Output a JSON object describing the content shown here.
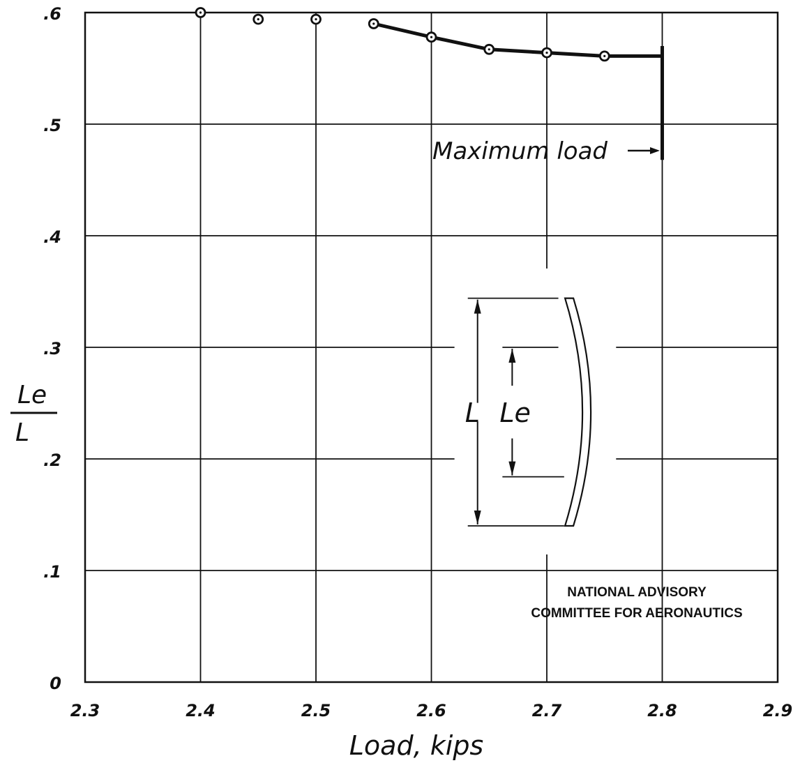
{
  "chart_data": {
    "type": "line",
    "xlabel": "Load, kips",
    "ylabel": {
      "numerator": "Le",
      "denominator": "L"
    },
    "xlim": [
      2.3,
      2.9
    ],
    "ylim": [
      0,
      0.6
    ],
    "x_ticks": [
      2.3,
      2.4,
      2.5,
      2.6,
      2.7,
      2.8,
      2.9
    ],
    "x_tick_labels": [
      "2.3",
      "2.4",
      "2.5",
      "2.6",
      "2.7",
      "2.8",
      "2.9"
    ],
    "y_ticks": [
      0,
      0.1,
      0.2,
      0.3,
      0.4,
      0.5,
      0.6
    ],
    "y_tick_labels": [
      "0",
      ".1",
      ".2",
      ".3",
      ".4",
      ".5",
      ".6"
    ],
    "grid": true,
    "points": [
      {
        "x": 2.4,
        "y": 0.6
      },
      {
        "x": 2.45,
        "y": 0.594
      },
      {
        "x": 2.5,
        "y": 0.594
      },
      {
        "x": 2.55,
        "y": 0.59
      },
      {
        "x": 2.6,
        "y": 0.578
      },
      {
        "x": 2.65,
        "y": 0.567
      },
      {
        "x": 2.7,
        "y": 0.564
      },
      {
        "x": 2.75,
        "y": 0.561
      }
    ],
    "curve": [
      {
        "x": 2.55,
        "y": 0.59
      },
      {
        "x": 2.6,
        "y": 0.578
      },
      {
        "x": 2.65,
        "y": 0.567
      },
      {
        "x": 2.7,
        "y": 0.564
      },
      {
        "x": 2.75,
        "y": 0.561
      },
      {
        "x": 2.8,
        "y": 0.561
      }
    ],
    "max_load": {
      "x": 2.8,
      "y_range": [
        0.468,
        0.57
      ],
      "label": "Maximum load"
    },
    "inset": {
      "label_L": "L",
      "label_Le": "Le"
    },
    "stamp": [
      "NATIONAL ADVISORY",
      "COMMITTEE FOR AERONAUTICS"
    ]
  },
  "colors": {
    "ink": "#111111",
    "background": "#ffffff"
  }
}
